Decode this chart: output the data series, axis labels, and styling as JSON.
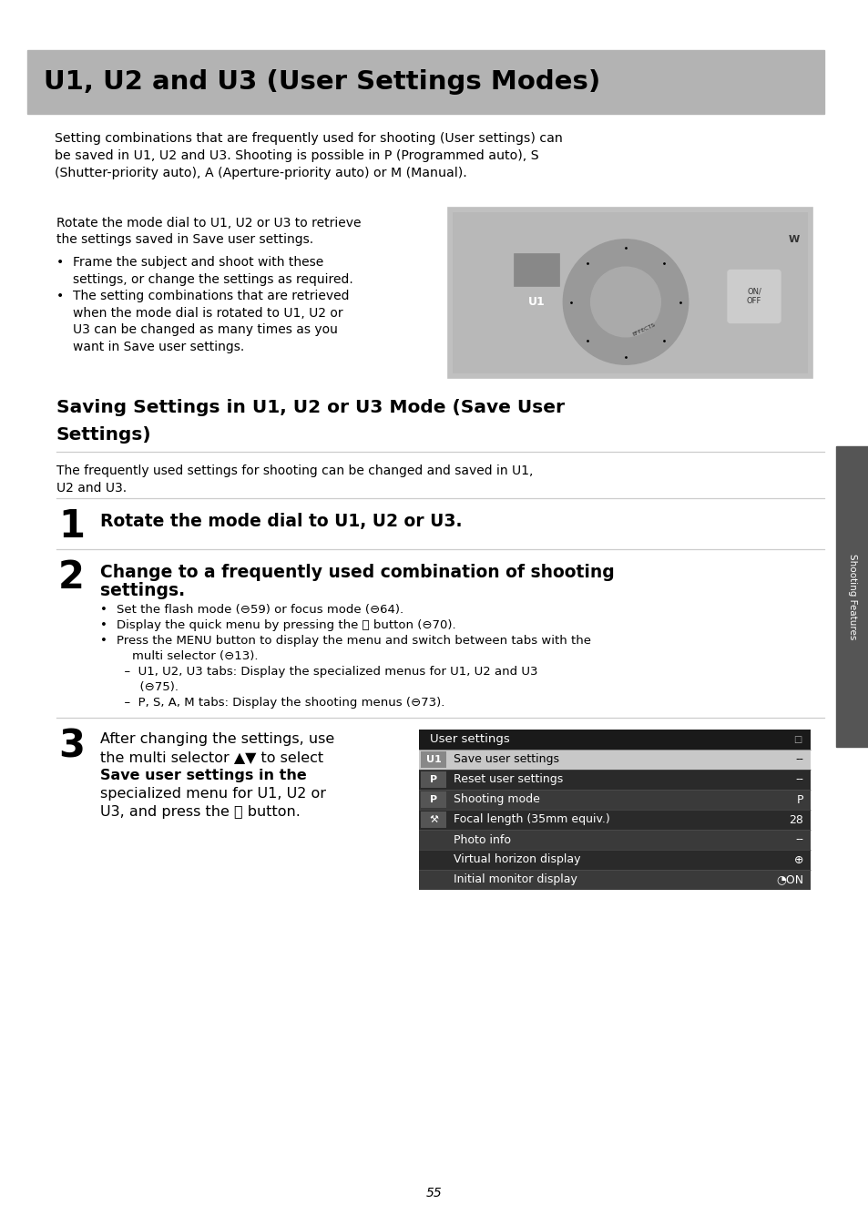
{
  "bg_color": "#ffffff",
  "page_width": 9.54,
  "page_height": 13.45,
  "dpi": 100,
  "header_bg": "#b3b3b3",
  "header_text": "U1, U2 and U3 (User Settings Modes)",
  "sidebar_text": "Shooting Features",
  "sidebar_bg": "#555555",
  "page_number": "55",
  "table_header_bg": "#1a1a1a",
  "table_header_text": "User settings",
  "table_row1_bg": "#c8c8c8",
  "table_row_alt_bg": "#e8e8e8",
  "table_row_dark_bg": "#2a2a2a",
  "table_selected_bg": "#d0d0d0"
}
